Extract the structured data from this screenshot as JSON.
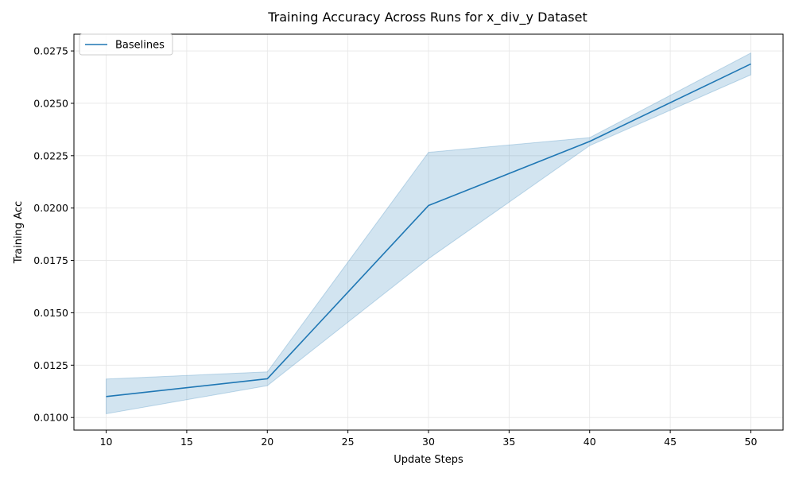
{
  "chart_data": {
    "type": "line",
    "title": "Training Accuracy Across Runs for x_div_y Dataset",
    "xlabel": "Update Steps",
    "ylabel": "Training Acc",
    "xlim": [
      8,
      52
    ],
    "ylim": [
      0.0094,
      0.0283
    ],
    "xticks": [
      10,
      15,
      20,
      25,
      30,
      35,
      40,
      45,
      50
    ],
    "xtick_labels": [
      "10",
      "15",
      "20",
      "25",
      "30",
      "35",
      "40",
      "45",
      "50"
    ],
    "yticks": [
      0.01,
      0.0125,
      0.015,
      0.0175,
      0.02,
      0.0225,
      0.025,
      0.0275
    ],
    "ytick_labels": [
      "0.0100",
      "0.0125",
      "0.0150",
      "0.0175",
      "0.0200",
      "0.0225",
      "0.0250",
      "0.0275"
    ],
    "grid": true,
    "legend_position": "top-left",
    "series": [
      {
        "name": "Baselines",
        "color": "#1f77b4",
        "x": [
          10,
          20,
          30,
          40,
          50
        ],
        "y": [
          0.011,
          0.01185,
          0.02012,
          0.02318,
          0.02688
        ],
        "band_lower": [
          0.01018,
          0.01152,
          0.01758,
          0.02298,
          0.02636
        ],
        "band_upper": [
          0.01184,
          0.01218,
          0.02266,
          0.02336,
          0.0274
        ]
      }
    ]
  }
}
